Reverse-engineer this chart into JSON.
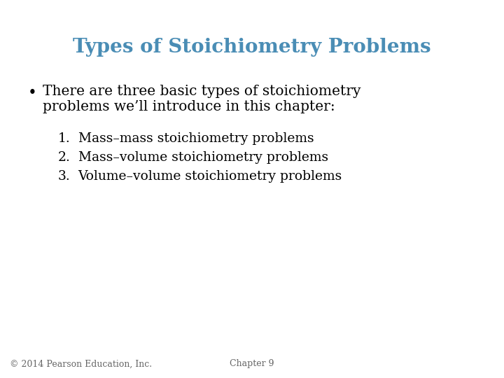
{
  "title": "Types of Stoichiometry Problems",
  "title_color": "#4a8db5",
  "title_fontsize": 20,
  "background_color": "#ffffff",
  "bullet_text_line1": "There are three basic types of stoichiometry",
  "bullet_text_line2": "problems we’ll introduce in this chapter:",
  "bullet_color": "#000000",
  "bullet_fontsize": 14.5,
  "numbered_items": [
    "Mass–mass stoichiometry problems",
    "Mass–volume stoichiometry problems",
    "Volume–volume stoichiometry problems"
  ],
  "numbered_color": "#000000",
  "numbered_fontsize": 13.5,
  "footer_left": "© 2014 Pearson Education, Inc.",
  "footer_center": "Chapter 9",
  "footer_color": "#666666",
  "footer_fontsize": 9
}
